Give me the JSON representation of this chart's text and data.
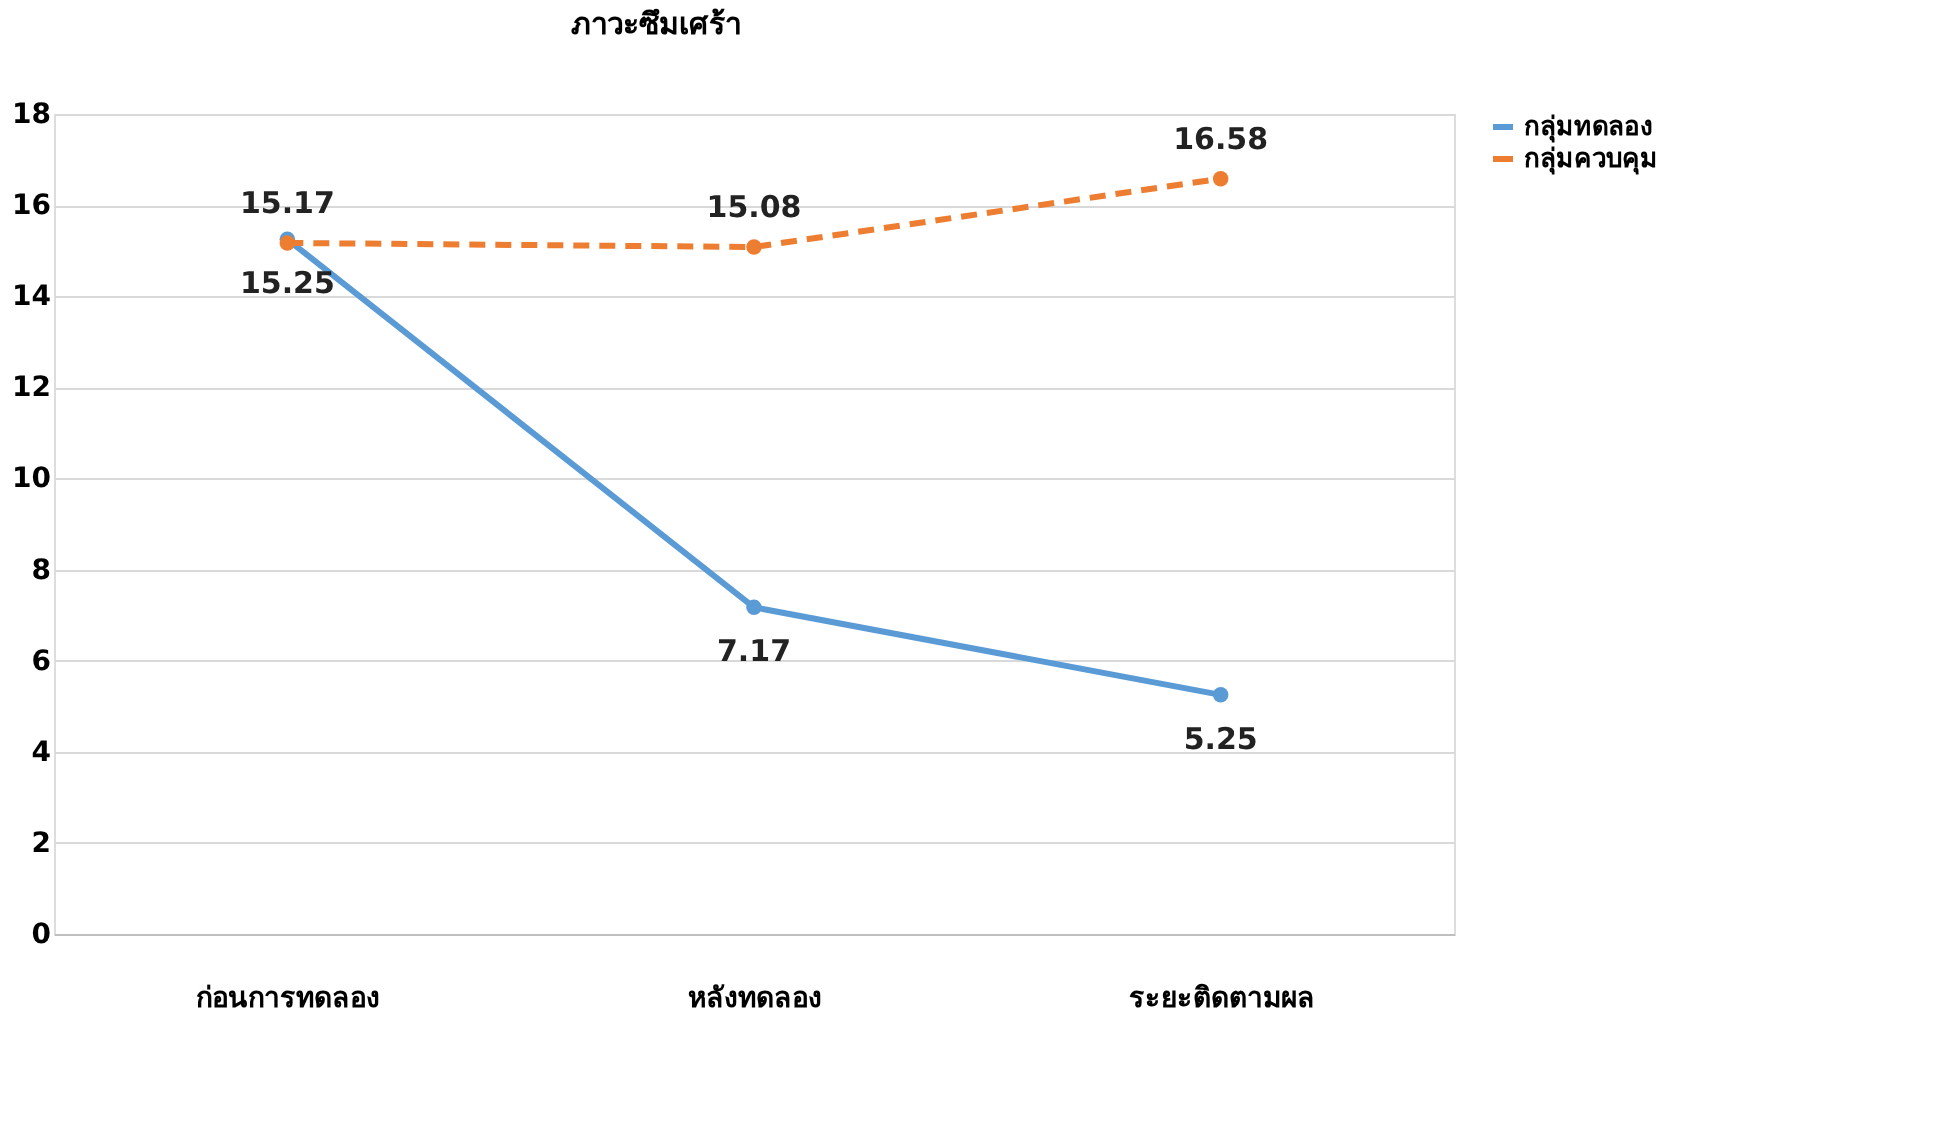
{
  "chart_data": {
    "type": "line",
    "title": "ภาวะซึมเศร้า",
    "categories": [
      "ก่อนการทดลอง",
      "หลังทดลอง",
      "ระยะติดตามผล"
    ],
    "series": [
      {
        "name": "กลุ่มทดลอง",
        "color": "#5b9bd5",
        "values": [
          15.25,
          7.17,
          5.25
        ],
        "line_style": "solid"
      },
      {
        "name": "กลุ่มควบคุม",
        "color": "#ed7d31",
        "values": [
          15.17,
          15.08,
          16.58
        ],
        "line_style": "dashed"
      }
    ],
    "ylim": [
      0,
      18
    ],
    "yticks": [
      0,
      2,
      4,
      6,
      8,
      10,
      12,
      14,
      16,
      18
    ],
    "grid": "y",
    "legend": "right",
    "marker": "circle",
    "data_labels": true
  }
}
